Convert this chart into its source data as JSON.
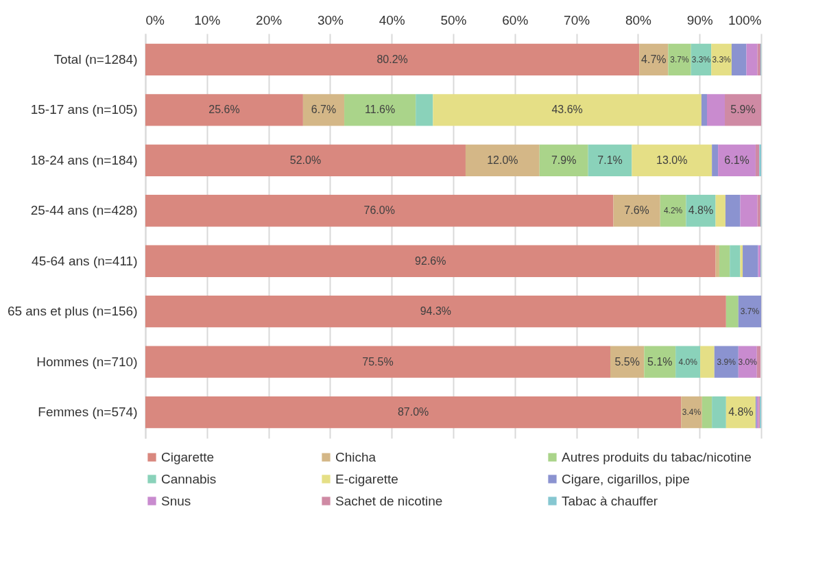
{
  "chart_data": {
    "type": "bar",
    "orientation": "horizontal",
    "stacked": true,
    "categories": [
      "Total (n=1284)",
      "15-17 ans (n=105)",
      "18-24 ans (n=184)",
      "25-44 ans (n=428)",
      "45-64 ans (n=411)",
      "65 ans et plus (n=156)",
      "Hommes (n=710)",
      "Femmes (n=574)"
    ],
    "series": [
      {
        "name": "Cigarette",
        "color": "#d9887f",
        "values": [
          80.2,
          25.6,
          52.0,
          76.0,
          92.6,
          94.3,
          75.5,
          87.0
        ],
        "value_labels": [
          "80.2%",
          "25.6%",
          "52.0%",
          "76.0%",
          "92.6%",
          "94.3%",
          "75.5%",
          "87.0%"
        ]
      },
      {
        "name": "Chicha",
        "color": "#d4b787",
        "values": [
          4.7,
          6.7,
          12.0,
          7.6,
          0.6,
          0,
          5.5,
          3.4
        ],
        "value_labels": [
          "4.7%",
          "6.7%",
          "12.0%",
          "7.6%",
          null,
          null,
          "5.5%",
          "3.4%"
        ]
      },
      {
        "name": "Autres produits du tabac/nicotine",
        "color": "#aad48a",
        "values": [
          3.7,
          11.6,
          7.9,
          4.2,
          1.7,
          2.0,
          5.1,
          1.6
        ],
        "value_labels": [
          "3.7%",
          "11.6%",
          "7.9%",
          "4.2%",
          null,
          null,
          "5.1%",
          null
        ]
      },
      {
        "name": "Cannabis",
        "color": "#8ad2ba",
        "values": [
          3.3,
          2.8,
          7.1,
          4.8,
          1.7,
          0,
          4.0,
          2.3
        ],
        "value_labels": [
          "3.3%",
          null,
          "7.1%",
          "4.8%",
          null,
          null,
          "4.0%",
          null
        ]
      },
      {
        "name": "E-cigarette",
        "color": "#e5df86",
        "values": [
          3.3,
          43.6,
          13.0,
          1.6,
          0.4,
          0,
          2.3,
          4.8
        ],
        "value_labels": [
          "3.3%",
          "43.6%",
          "13.0%",
          null,
          null,
          null,
          null,
          "4.8%"
        ]
      },
      {
        "name": "Cigare, cigarillos, pipe",
        "color": "#8b93d0",
        "values": [
          2.4,
          0.9,
          1.0,
          2.4,
          2.5,
          3.7,
          3.9,
          0.2
        ],
        "value_labels": [
          null,
          null,
          null,
          null,
          null,
          "3.7%",
          "3.9%",
          null
        ]
      },
      {
        "name": "Snus",
        "color": "#c98bcf",
        "values": [
          1.8,
          2.9,
          6.1,
          2.8,
          0.4,
          0,
          3.0,
          0.3
        ],
        "value_labels": [
          null,
          null,
          "6.1%",
          null,
          null,
          null,
          "3.0%",
          null
        ]
      },
      {
        "name": "Sachet de nicotine",
        "color": "#cf8aa4",
        "values": [
          0.5,
          5.9,
          0.6,
          0.5,
          0,
          0,
          0.6,
          0.2
        ],
        "value_labels": [
          null,
          "5.9%",
          null,
          null,
          null,
          null,
          null,
          null
        ]
      },
      {
        "name": "Tabac à chauffer",
        "color": "#86c7d1",
        "values": [
          0.1,
          0,
          0.3,
          0.1,
          0.1,
          0,
          0,
          0.2
        ],
        "value_labels": [
          null,
          null,
          null,
          null,
          null,
          null,
          null,
          null
        ]
      }
    ],
    "xlim": [
      0,
      100
    ],
    "xticks": [
      {
        "value": 0,
        "label": "0%"
      },
      {
        "value": 10,
        "label": "10%"
      },
      {
        "value": 20,
        "label": "20%"
      },
      {
        "value": 30,
        "label": "30%"
      },
      {
        "value": 40,
        "label": "40%"
      },
      {
        "value": 50,
        "label": "50%"
      },
      {
        "value": 60,
        "label": "60%"
      },
      {
        "value": 70,
        "label": "70%"
      },
      {
        "value": 80,
        "label": "80%"
      },
      {
        "value": 90,
        "label": "90%"
      },
      {
        "value": 100,
        "label": "100%"
      }
    ],
    "grid": "x",
    "legend": "bottom"
  }
}
